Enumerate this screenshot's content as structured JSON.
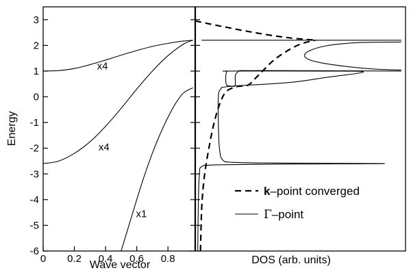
{
  "chart_data": [
    {
      "type": "line",
      "panel": "left",
      "xlabel": "Wave vector",
      "ylabel": "Energy",
      "xlim": [
        0,
        0.975
      ],
      "ylim": [
        -6,
        3.5
      ],
      "xticks": [
        "0",
        "0.2",
        "0.4",
        "0.6",
        "0.8"
      ],
      "xtick_values": [
        0,
        0.2,
        0.4,
        0.6,
        0.8
      ],
      "yticks": [
        "-6",
        "-5",
        "-4",
        "-3",
        "-2",
        "-1",
        "0",
        "1",
        "2",
        "3"
      ],
      "ytick_values": [
        -6,
        -5,
        -4,
        -3,
        -2,
        -1,
        0,
        1,
        2,
        3
      ],
      "series": [
        {
          "label": "x4",
          "x": [
            0,
            0.1,
            0.2,
            0.3,
            0.4,
            0.5,
            0.6,
            0.7,
            0.8,
            0.9,
            0.96
          ],
          "y": [
            1.0,
            1.02,
            1.1,
            1.25,
            1.43,
            1.62,
            1.8,
            1.96,
            2.08,
            2.17,
            2.2
          ]
        },
        {
          "label": "x4",
          "x": [
            0,
            0.1,
            0.2,
            0.3,
            0.4,
            0.5,
            0.6,
            0.7,
            0.8,
            0.9,
            0.96
          ],
          "y": [
            -2.6,
            -2.5,
            -2.2,
            -1.75,
            -1.15,
            -0.45,
            0.3,
            1.0,
            1.6,
            2.05,
            2.2
          ]
        },
        {
          "label": "x1",
          "x": [
            0.5,
            0.55,
            0.6,
            0.65,
            0.7,
            0.75,
            0.8,
            0.85,
            0.9,
            0.96
          ],
          "y": [
            -6.0,
            -5.0,
            -4.0,
            -3.05,
            -2.2,
            -1.45,
            -0.8,
            -0.25,
            0.15,
            0.35
          ]
        }
      ],
      "annotations": [
        {
          "text": "x4",
          "x": 0.38,
          "y": 1.2
        },
        {
          "text": "x4",
          "x": 0.39,
          "y": -1.95
        },
        {
          "text": "x1",
          "x": 0.63,
          "y": -4.55
        }
      ]
    },
    {
      "type": "line",
      "panel": "right",
      "xlabel": "DOS (arb. units)",
      "ylim": [
        -6,
        3.5
      ],
      "xlim": [
        0,
        1
      ],
      "legend": {
        "position": "bottom-right",
        "entries": [
          {
            "prefix": "",
            "bold": "k",
            "suffix": "–point converged",
            "style": "dashed"
          },
          {
            "prefix": "Γ",
            "bold": "",
            "suffix": "–point",
            "style": "solid"
          }
        ]
      },
      "series": [
        {
          "style": "solid",
          "points": [
            [
              0.012,
              -6.0
            ],
            [
              0.015,
              -4.0
            ],
            [
              0.02,
              -3.0
            ],
            [
              0.03,
              -2.72
            ],
            [
              0.09,
              -2.65
            ],
            [
              0.4,
              -2.62
            ],
            [
              0.9,
              -2.6
            ],
            [
              0.4,
              -2.58
            ],
            [
              0.18,
              -2.55
            ],
            [
              0.13,
              -2.45
            ],
            [
              0.115,
              -2.0
            ],
            [
              0.11,
              -1.0
            ],
            [
              0.11,
              0.0
            ],
            [
              0.12,
              0.28
            ],
            [
              0.16,
              0.4
            ],
            [
              0.44,
              0.55
            ],
            [
              0.62,
              0.75
            ],
            [
              0.8,
              0.97
            ],
            [
              0.6,
              1.0
            ],
            [
              0.17,
              1.0
            ],
            [
              0.15,
              0.97
            ],
            [
              0.145,
              0.7
            ],
            [
              0.15,
              0.45
            ],
            [
              0.17,
              0.42
            ],
            [
              0.19,
              0.45
            ],
            [
              0.2,
              0.95
            ],
            [
              0.3,
              1.02
            ],
            [
              0.98,
              1.0
            ]
          ]
        },
        {
          "style": "solid",
          "points": [
            [
              0.98,
              2.13
            ],
            [
              0.76,
              2.1
            ],
            [
              0.62,
              1.98
            ],
            [
              0.54,
              1.78
            ],
            [
              0.52,
              1.6
            ],
            [
              0.54,
              1.45
            ],
            [
              0.6,
              1.32
            ],
            [
              0.72,
              1.18
            ],
            [
              0.85,
              1.08
            ],
            [
              0.98,
              1.04
            ]
          ]
        },
        {
          "style": "solid",
          "points": [
            [
              0.03,
              2.2
            ],
            [
              0.98,
              2.2
            ]
          ]
        },
        {
          "style": "dashed",
          "points": [
            [
              0.025,
              -6.0
            ],
            [
              0.028,
              -5.0
            ],
            [
              0.033,
              -4.0
            ],
            [
              0.045,
              -3.0
            ],
            [
              0.065,
              -2.0
            ],
            [
              0.09,
              -1.0
            ],
            [
              0.12,
              -0.2
            ],
            [
              0.15,
              0.22
            ],
            [
              0.2,
              0.4
            ],
            [
              0.25,
              0.45
            ],
            [
              0.29,
              0.75
            ],
            [
              0.32,
              1.0
            ],
            [
              0.37,
              1.4
            ],
            [
              0.43,
              1.75
            ],
            [
              0.5,
              2.05
            ],
            [
              0.57,
              2.2
            ]
          ]
        },
        {
          "style": "dashed",
          "points": [
            [
              0.0,
              2.95
            ],
            [
              0.12,
              2.75
            ],
            [
              0.28,
              2.5
            ],
            [
              0.44,
              2.3
            ],
            [
              0.58,
              2.2
            ]
          ]
        }
      ]
    }
  ]
}
